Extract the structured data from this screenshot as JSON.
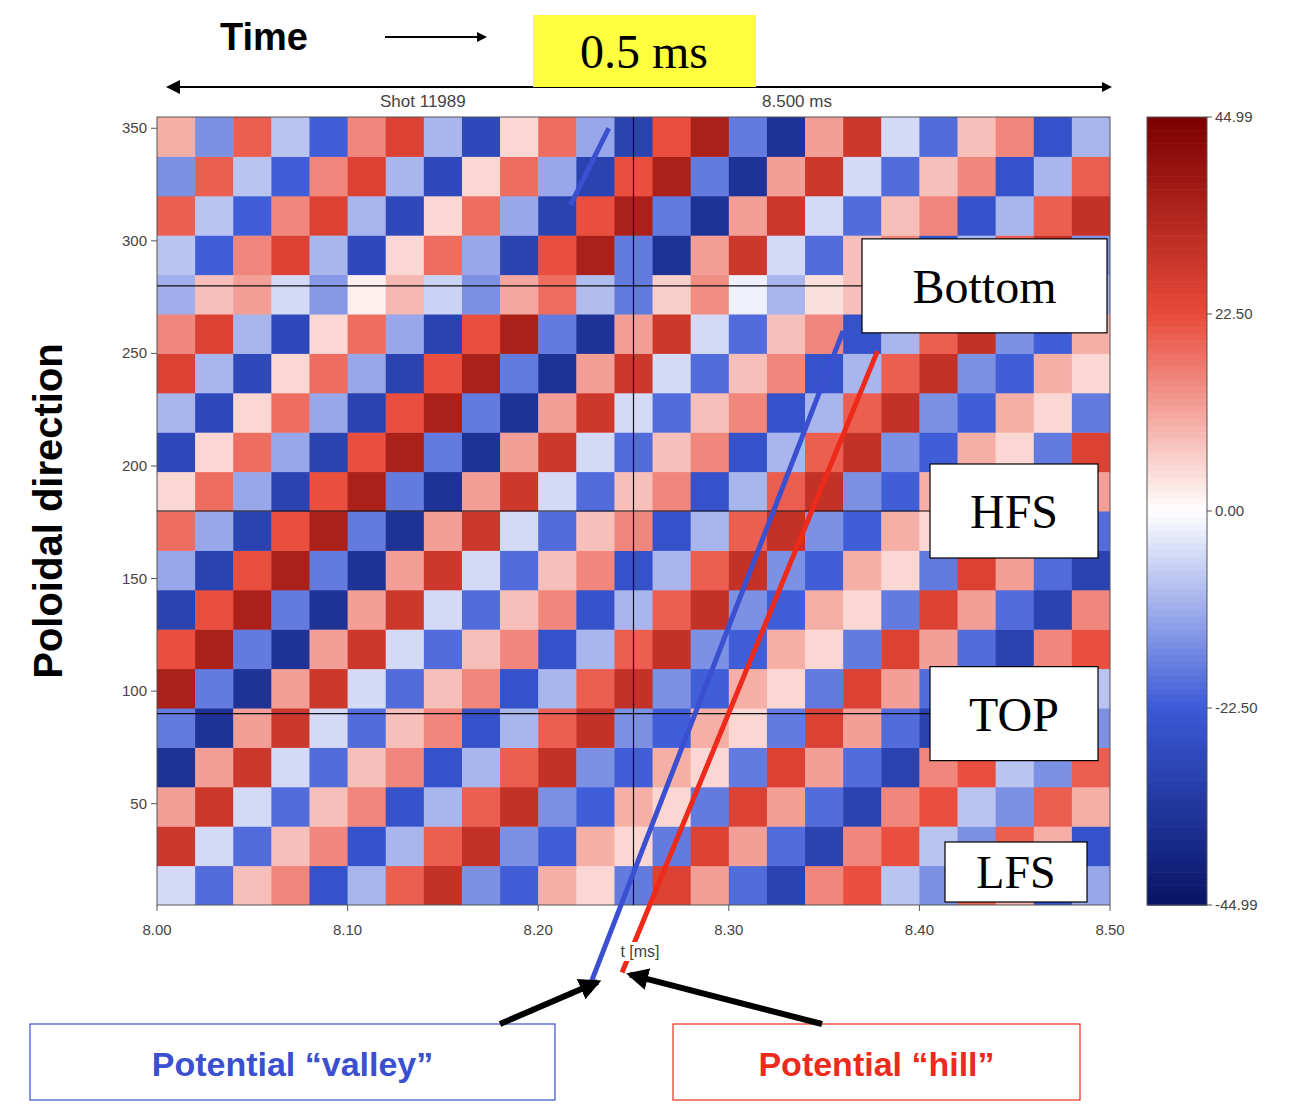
{
  "chart_data": {
    "type": "heatmap",
    "title": "Shot 11989",
    "x_label": "t [ms]",
    "y_label": "Poloidal direction",
    "xlim": [
      8.0,
      8.5
    ],
    "xticks": [
      {
        "value": 8.0,
        "label": "8.00"
      },
      {
        "value": 8.1,
        "label": "8.10"
      },
      {
        "value": 8.2,
        "label": "8.20"
      },
      {
        "value": 8.3,
        "label": "8.30"
      },
      {
        "value": 8.4,
        "label": "8.40"
      },
      {
        "value": 8.5,
        "label": "8.50"
      }
    ],
    "ylim": [
      5,
      355
    ],
    "yticks": [
      50,
      100,
      150,
      200,
      250,
      300,
      350
    ],
    "x_edges": [
      8.0,
      8.02,
      8.04,
      8.06,
      8.08,
      8.1,
      8.12,
      8.14,
      8.16,
      8.18,
      8.2,
      8.22,
      8.24,
      8.26,
      8.28,
      8.3,
      8.32,
      8.34,
      8.36,
      8.38,
      8.4,
      8.42,
      8.44,
      8.46,
      8.48,
      8.5
    ],
    "y_edges": [
      5,
      22.5,
      40,
      57.5,
      75,
      92.5,
      110,
      127.5,
      145,
      162.5,
      180,
      197.5,
      215,
      232.5,
      250,
      267.5,
      285,
      302.5,
      320,
      337.5,
      355
    ],
    "cells": [
      [
        -5,
        -20,
        8,
        15,
        -25,
        -10,
        20,
        30,
        -15,
        -22,
        10,
        5,
        -18,
        25,
        12,
        -20,
        -30,
        15,
        22,
        -8,
        -15,
        20,
        10,
        -25,
        -12
      ],
      [
        28,
        -5,
        -20,
        8,
        15,
        -25,
        -10,
        20,
        30,
        -15,
        -22,
        10,
        5,
        -18,
        25,
        12,
        -20,
        -30,
        15,
        22,
        -8,
        -15,
        20,
        10,
        -25
      ],
      [
        12,
        28,
        -5,
        -20,
        8,
        15,
        -25,
        -10,
        20,
        30,
        -15,
        -22,
        10,
        5,
        -18,
        25,
        12,
        -20,
        -30,
        15,
        22,
        -8,
        -15,
        20,
        10
      ],
      [
        -35,
        12,
        28,
        -5,
        -20,
        8,
        15,
        -25,
        -10,
        20,
        30,
        -15,
        -22,
        10,
        5,
        -18,
        25,
        12,
        -20,
        -30,
        15,
        22,
        -8,
        -15,
        20
      ],
      [
        -18,
        -35,
        12,
        28,
        -5,
        -20,
        8,
        15,
        -25,
        -10,
        20,
        30,
        -15,
        -22,
        10,
        5,
        -18,
        25,
        12,
        -20,
        -30,
        15,
        22,
        -8,
        -15
      ],
      [
        35,
        -18,
        -35,
        12,
        28,
        -5,
        -20,
        8,
        15,
        -25,
        -10,
        20,
        30,
        -15,
        -22,
        10,
        5,
        -18,
        25,
        12,
        -20,
        -30,
        15,
        22,
        -8
      ],
      [
        22,
        35,
        -18,
        -35,
        12,
        28,
        -5,
        -20,
        8,
        15,
        -25,
        -10,
        20,
        30,
        -15,
        -22,
        10,
        5,
        -18,
        25,
        12,
        -20,
        -30,
        15,
        22
      ],
      [
        -30,
        22,
        35,
        -18,
        -35,
        12,
        28,
        -5,
        -20,
        8,
        15,
        -25,
        -10,
        20,
        30,
        -15,
        -22,
        10,
        5,
        -18,
        25,
        12,
        -20,
        -30,
        15
      ],
      [
        -12,
        -30,
        22,
        35,
        -18,
        -35,
        12,
        28,
        -5,
        -20,
        8,
        15,
        -25,
        -10,
        20,
        30,
        -15,
        -22,
        10,
        5,
        -18,
        25,
        12,
        -20,
        -30
      ],
      [
        18,
        -12,
        -30,
        22,
        35,
        -18,
        -35,
        12,
        28,
        -5,
        -20,
        8,
        15,
        -25,
        -10,
        20,
        30,
        -15,
        -22,
        10,
        5,
        -18,
        25,
        12,
        -20
      ],
      [
        5,
        18,
        -12,
        -30,
        22,
        35,
        -18,
        -35,
        12,
        28,
        -5,
        -20,
        8,
        15,
        -25,
        -10,
        20,
        30,
        -15,
        -22,
        10,
        5,
        -18,
        25,
        12
      ],
      [
        -28,
        5,
        18,
        -12,
        -30,
        22,
        35,
        -18,
        -35,
        12,
        28,
        -5,
        -20,
        8,
        15,
        -25,
        -10,
        20,
        30,
        -15,
        -22,
        10,
        5,
        -18,
        25
      ],
      [
        -10,
        -28,
        5,
        18,
        -12,
        -30,
        22,
        35,
        -18,
        -35,
        12,
        28,
        -5,
        -20,
        8,
        15,
        -25,
        -10,
        20,
        30,
        -15,
        -22,
        10,
        5,
        -18
      ],
      [
        25,
        -10,
        -28,
        5,
        18,
        -12,
        -30,
        22,
        35,
        -18,
        -35,
        12,
        28,
        -5,
        -20,
        8,
        15,
        -25,
        -10,
        20,
        30,
        -15,
        -22,
        10,
        5
      ],
      [
        15,
        25,
        -10,
        -28,
        5,
        18,
        -12,
        -30,
        22,
        35,
        -18,
        -35,
        12,
        28,
        -5,
        -20,
        8,
        15,
        -25,
        -10,
        20,
        30,
        -15,
        -22,
        10
      ],
      [
        -11,
        8,
        12,
        -5,
        -14,
        2,
        9,
        -6,
        -15,
        11,
        18,
        -9,
        -18,
        6,
        14,
        -2,
        -10,
        4,
        8,
        -12,
        -5,
        10,
        15,
        -8,
        -11
      ],
      [
        -8,
        -22,
        15,
        25,
        -10,
        -28,
        5,
        18,
        -12,
        -30,
        22,
        35,
        -18,
        -35,
        12,
        28,
        -5,
        -20,
        8,
        15,
        -25,
        -10,
        20,
        30,
        -15
      ],
      [
        20,
        -8,
        -22,
        15,
        25,
        -10,
        -28,
        5,
        18,
        -12,
        -30,
        22,
        35,
        -18,
        -35,
        12,
        28,
        -5,
        -20,
        8,
        15,
        -25,
        -10,
        20,
        30
      ],
      [
        -15,
        20,
        -8,
        -22,
        15,
        25,
        -10,
        -28,
        5,
        18,
        -12,
        -30,
        22,
        35,
        -18,
        -35,
        12,
        28,
        -5,
        -20,
        8,
        15,
        -25,
        -10,
        20
      ],
      [
        10,
        -15,
        20,
        -8,
        -22,
        15,
        25,
        -10,
        -28,
        5,
        18,
        -12,
        -30,
        22,
        35,
        -18,
        -35,
        12,
        28,
        -5,
        -20,
        8,
        15,
        -25,
        -10
      ]
    ],
    "color_range": [
      -44.99,
      44.99
    ],
    "color_ticks": [
      44.99,
      {
        "value": 22.5,
        "label": "22.50"
      },
      {
        "value": 0,
        "label": "0.00"
      },
      {
        "value": -22.5,
        "label": "-22.50"
      },
      -44.99
    ],
    "vline": 8.25,
    "annotations": [
      {
        "text": "Time"
      },
      {
        "text": "0.5 ms"
      },
      {
        "text": "8.500 ms"
      },
      {
        "text": "Bottom",
        "y": 280
      },
      {
        "text": "HFS",
        "y": 180
      },
      {
        "text": "TOP",
        "y": 90
      },
      {
        "text": "LFS"
      },
      {
        "text": "Potential “valley”",
        "color": "#3a50d0"
      },
      {
        "text": "Potential “hill”",
        "color": "#ee2a1a"
      }
    ],
    "lines": [
      {
        "color": "#3a50d0",
        "x": [
          8.227,
          8.36
        ],
        "y": [
          -31,
          260
        ]
      },
      {
        "color": "#ee2a1a",
        "x": [
          8.244,
          8.378
        ],
        "y": [
          -25,
          251
        ]
      },
      {
        "color": "#3a50d0",
        "x": [
          8.217,
          8.237
        ],
        "y": [
          316,
          350
        ]
      }
    ]
  }
}
